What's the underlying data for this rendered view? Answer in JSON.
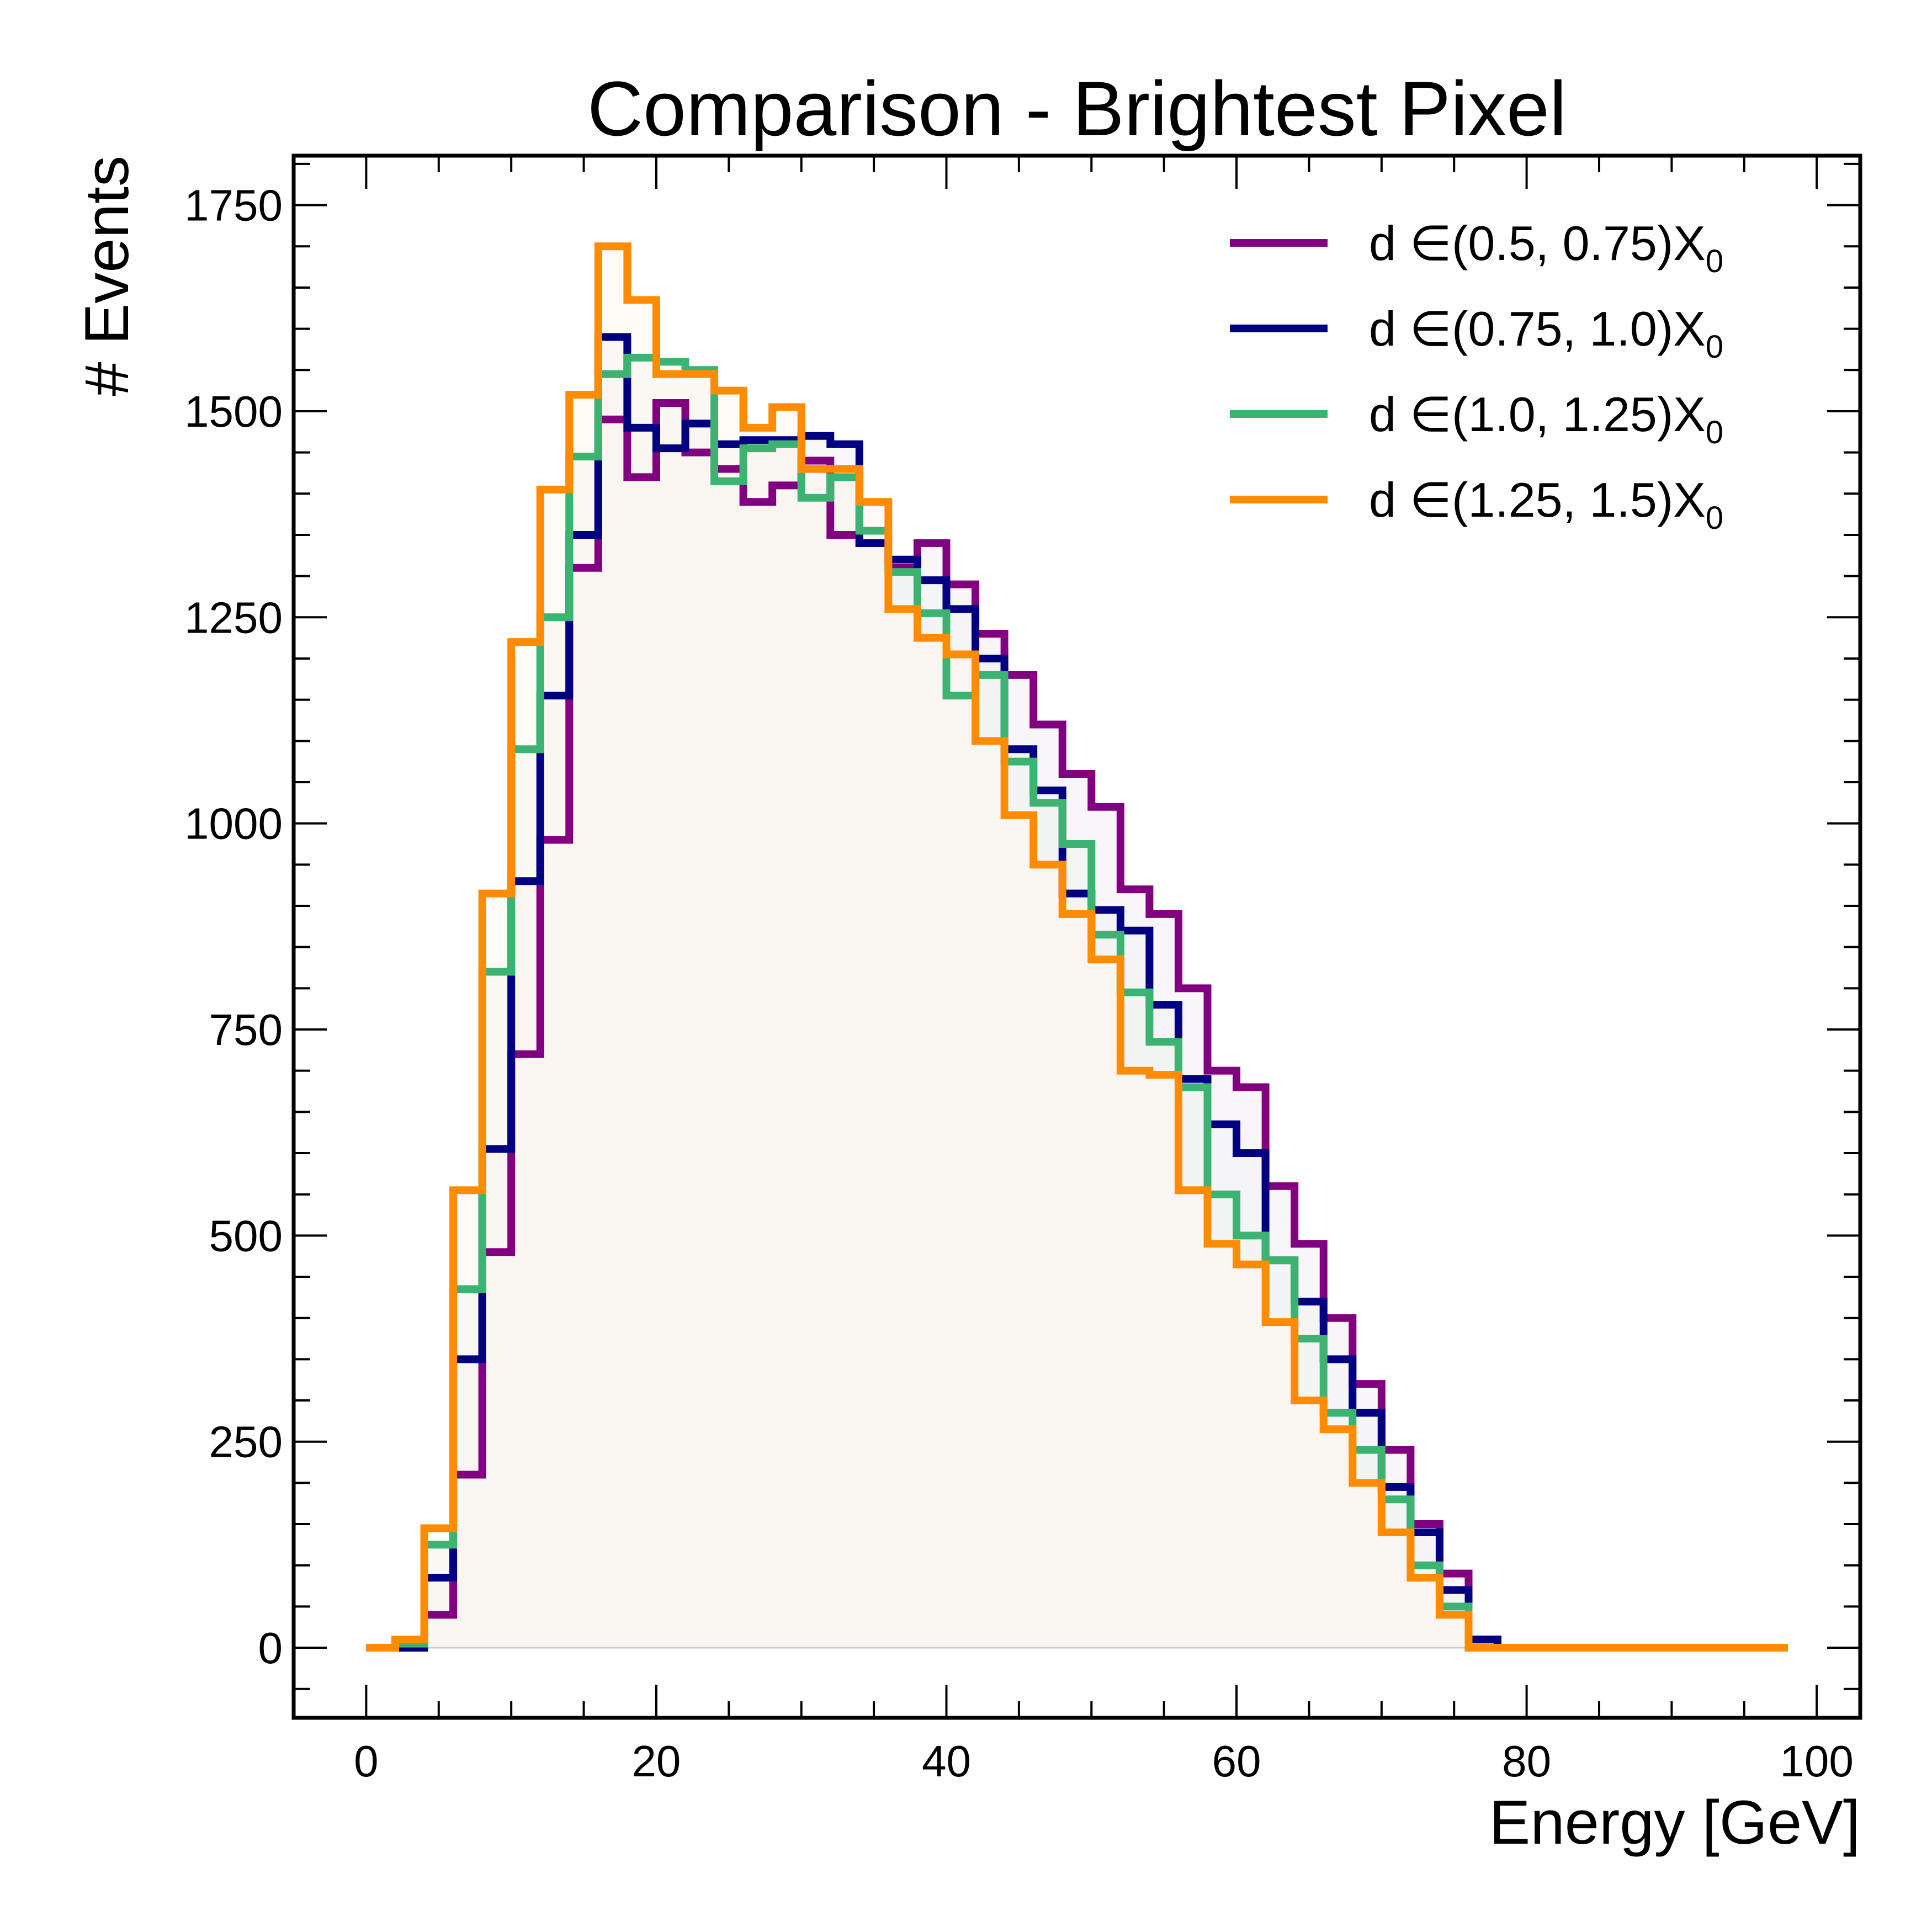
{
  "chart_data": {
    "type": "line",
    "title": "Comparison - Brightest Pixel",
    "xlabel": "Energy [GeV]",
    "ylabel": "# Events",
    "xlim": [
      -5,
      103
    ],
    "ylim": [
      -85,
      1810
    ],
    "xticks": [
      0,
      20,
      40,
      60,
      80,
      100
    ],
    "yticks": [
      0,
      250,
      500,
      750,
      1000,
      1250,
      1500,
      1750
    ],
    "grid": false,
    "legend_position": "top-right",
    "bin_edges": [
      0,
      2,
      4,
      6,
      8,
      10,
      12,
      14,
      16,
      18,
      20,
      22,
      24,
      26,
      28,
      30,
      32,
      34,
      36,
      38,
      40,
      42,
      44,
      46,
      48,
      50,
      52,
      54,
      56,
      58,
      60,
      62,
      64,
      66,
      68,
      70,
      72,
      74,
      76,
      78,
      80,
      82,
      84,
      86,
      88,
      90,
      92,
      94,
      96,
      98
    ],
    "series": [
      {
        "legend_prefix": "d",
        "legend_interval": "∈(0.5, 0.75)",
        "legend_symbol": "X",
        "legend_subscript": "0",
        "color": "#800080",
        "values": [
          0,
          0,
          40,
          210,
          480,
          720,
          980,
          1310,
          1490,
          1420,
          1510,
          1450,
          1430,
          1390,
          1410,
          1440,
          1350,
          1340,
          1310,
          1340,
          1290,
          1230,
          1180,
          1120,
          1060,
          1020,
          920,
          890,
          800,
          700,
          680,
          560,
          490,
          400,
          320,
          240,
          150,
          90,
          10,
          0,
          0,
          0,
          0,
          0,
          0,
          0,
          0,
          0,
          0
        ]
      },
      {
        "legend_prefix": "d",
        "legend_interval": "∈(0.75, 1.0)",
        "legend_symbol": "X",
        "legend_subscript": "0",
        "color": "#000080",
        "values": [
          0,
          0,
          85,
          350,
          605,
          930,
          1155,
          1350,
          1590,
          1480,
          1455,
          1485,
          1460,
          1465,
          1465,
          1470,
          1460,
          1340,
          1320,
          1295,
          1260,
          1200,
          1090,
          1040,
          915,
          895,
          870,
          780,
          690,
          635,
          600,
          470,
          420,
          350,
          285,
          195,
          140,
          70,
          10,
          0,
          0,
          0,
          0,
          0,
          0,
          0,
          0,
          0,
          0
        ]
      },
      {
        "legend_prefix": "d",
        "legend_interval": "∈(1.0, 1.25)",
        "legend_symbol": "X",
        "legend_subscript": "0",
        "color": "#3cb371",
        "values": [
          0,
          5,
          125,
          435,
          820,
          1090,
          1250,
          1445,
          1545,
          1565,
          1560,
          1550,
          1415,
          1455,
          1460,
          1395,
          1420,
          1355,
          1305,
          1255,
          1155,
          1180,
          1075,
          1025,
          975,
          865,
          795,
          735,
          680,
          550,
          500,
          470,
          375,
          285,
          240,
          180,
          100,
          50,
          0,
          0,
          0,
          0,
          0,
          0,
          0,
          0,
          0,
          0,
          0
        ]
      },
      {
        "legend_prefix": "d",
        "legend_interval": "∈(1.25, 1.5)",
        "legend_symbol": "X",
        "legend_subscript": "0",
        "color": "#ff8c00",
        "values": [
          0,
          10,
          145,
          555,
          915,
          1220,
          1405,
          1520,
          1700,
          1635,
          1545,
          1545,
          1525,
          1480,
          1505,
          1430,
          1430,
          1390,
          1260,
          1225,
          1205,
          1100,
          1010,
          950,
          890,
          835,
          700,
          695,
          555,
          490,
          465,
          395,
          300,
          265,
          200,
          140,
          85,
          40,
          0,
          0,
          0,
          0,
          0,
          0,
          0,
          0,
          0,
          0,
          0
        ]
      }
    ]
  }
}
